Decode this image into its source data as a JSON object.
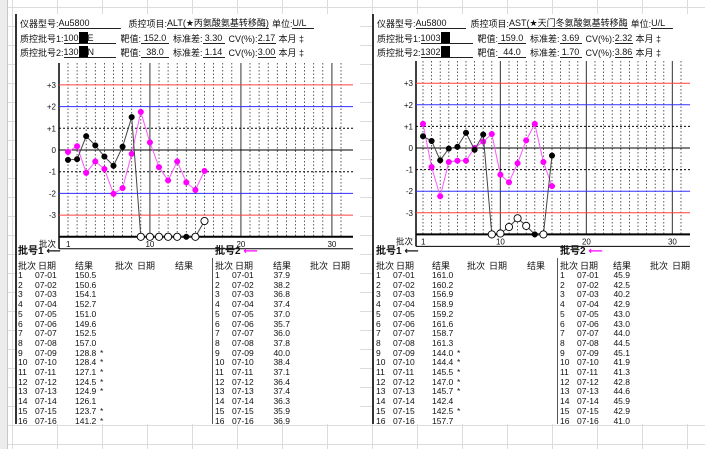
{
  "panels": [
    {
      "instrument_label": "仪器型号:",
      "instrument": "Au5800",
      "item_label": "质控项目:",
      "item": "ALT(★丙氨酸氨基转移酶)",
      "unit_label": "单位:",
      "unit": "U/L",
      "lot1_label": "质控批号1:",
      "lot1_prefix": "100",
      "lot1_suffix": "E",
      "lot2_label": "质控批号2:",
      "lot2_prefix": "130",
      "lot2_suffix": "N",
      "target_label": "靶值:",
      "sd_label": "标准差:",
      "cv_label": "CV(%):",
      "month_label": "本月 ‡",
      "lot1": {
        "target": "152.0",
        "sd": "3.30",
        "cv": "2.17"
      },
      "lot2": {
        "target": "38.0",
        "sd": "1.14",
        "cv": "3.00"
      },
      "legend1": "批号1",
      "legend2": "批号2",
      "col_batch": "批次",
      "col_date": "日期",
      "col_result": "结果"
    },
    {
      "instrument_label": "仪器型号:",
      "instrument": "Au5800",
      "item_label": "质控项目:",
      "item": "AST(★天门冬氨酸氨基转移酶",
      "unit_label": "单位:",
      "unit": "U/L",
      "lot1_label": "质控批号1:",
      "lot1_prefix": "1003",
      "lot1_suffix": "",
      "lot2_label": "质控批号2:",
      "lot2_prefix": "1302",
      "lot2_suffix": "",
      "target_label": "靶值:",
      "sd_label": "标准差:",
      "cv_label": "CV(%):",
      "month_label": "本月 ‡",
      "lot1": {
        "target": "159.0",
        "sd": "3.69",
        "cv": "2.32"
      },
      "lot2": {
        "target": "44.0",
        "sd": "1.70",
        "cv": "3.86"
      },
      "legend1": "批号1",
      "legend2": "批号2",
      "col_batch": "批次",
      "col_date": "日期",
      "col_result": "结果"
    }
  ],
  "chart_data": [
    {
      "type": "line",
      "title": "ALT(★丙氨酸氨基转移酶)",
      "xlabel": "批次",
      "x_ticks": [
        1,
        10,
        20,
        30
      ],
      "xlim": [
        1,
        31
      ],
      "y_ticks": [
        "+3",
        "+2",
        "+1",
        "0",
        "-1",
        "-2",
        "-3"
      ],
      "ylim": [
        -4,
        4
      ],
      "y_units": "SD",
      "control_lines": {
        "±3": "#ff4040",
        "±2": "#3030ff"
      },
      "x": [
        1,
        2,
        3,
        4,
        5,
        6,
        7,
        8,
        9,
        10,
        11,
        12,
        13,
        14,
        15,
        16
      ],
      "dates": [
        "07-01",
        "07-02",
        "07-03",
        "07-04",
        "07-05",
        "07-06",
        "07-07",
        "07-08",
        "07-09",
        "07-10",
        "07-11",
        "07-12",
        "07-13",
        "07-14",
        "07-15",
        "07-16"
      ],
      "series": [
        {
          "name": "批号1",
          "color": "#000000",
          "target": 152.0,
          "sd": 3.3,
          "values": [
            150.5,
            150.6,
            154.1,
            152.7,
            151.0,
            149.6,
            152.5,
            157.0,
            128.8,
            128.4,
            127.1,
            124.5,
            124.9,
            126.1,
            123.7,
            141.2
          ],
          "flags": [
            false,
            false,
            false,
            false,
            false,
            false,
            false,
            false,
            true,
            true,
            true,
            true,
            true,
            false,
            true,
            true
          ]
        },
        {
          "name": "批号2",
          "color": "#ff00ff",
          "target": 38.0,
          "sd": 1.14,
          "values": [
            37.9,
            38.2,
            36.8,
            37.4,
            37.0,
            35.7,
            36.0,
            37.8,
            40.0,
            38.4,
            37.1,
            36.4,
            37.4,
            36.3,
            35.9,
            36.9
          ],
          "flags": [
            false,
            false,
            false,
            false,
            false,
            false,
            false,
            false,
            false,
            false,
            false,
            false,
            false,
            false,
            false,
            false
          ]
        }
      ]
    },
    {
      "type": "line",
      "title": "AST(★天门冬氨酸氨基转移酶",
      "xlabel": "批次",
      "x_ticks": [
        1,
        10,
        20,
        30
      ],
      "xlim": [
        1,
        31
      ],
      "y_ticks": [
        "+3",
        "+2",
        "+1",
        "0",
        "-1",
        "-2",
        "-3"
      ],
      "ylim": [
        -4,
        4
      ],
      "y_units": "SD",
      "control_lines": {
        "±3": "#ff4040",
        "±2": "#3030ff"
      },
      "x": [
        1,
        2,
        3,
        4,
        5,
        6,
        7,
        8,
        9,
        10,
        11,
        12,
        13,
        14,
        15,
        16
      ],
      "dates": [
        "07-01",
        "07-02",
        "07-03",
        "07-04",
        "07-05",
        "07-06",
        "07-07",
        "07-08",
        "07-09",
        "07-10",
        "07-11",
        "07-12",
        "07-13",
        "07-14",
        "07-15",
        "07-16"
      ],
      "series": [
        {
          "name": "批号1",
          "color": "#000000",
          "target": 159.0,
          "sd": 3.69,
          "values": [
            161.0,
            160.2,
            156.9,
            158.9,
            159.2,
            161.6,
            158.7,
            161.3,
            144.0,
            144.4,
            145.5,
            147.0,
            145.7,
            142.4,
            142.5,
            157.7
          ],
          "flags": [
            false,
            false,
            false,
            false,
            false,
            false,
            false,
            false,
            true,
            true,
            true,
            true,
            true,
            false,
            true,
            false
          ]
        },
        {
          "name": "批号2",
          "color": "#ff00ff",
          "target": 44.0,
          "sd": 1.7,
          "values": [
            45.9,
            42.5,
            40.2,
            42.9,
            43.0,
            43.0,
            44.0,
            44.5,
            45.1,
            41.9,
            41.3,
            42.8,
            44.6,
            45.9,
            42.9,
            41.0
          ],
          "flags": [
            false,
            false,
            false,
            false,
            false,
            false,
            false,
            false,
            false,
            false,
            false,
            false,
            false,
            false,
            false,
            false
          ]
        }
      ]
    }
  ]
}
